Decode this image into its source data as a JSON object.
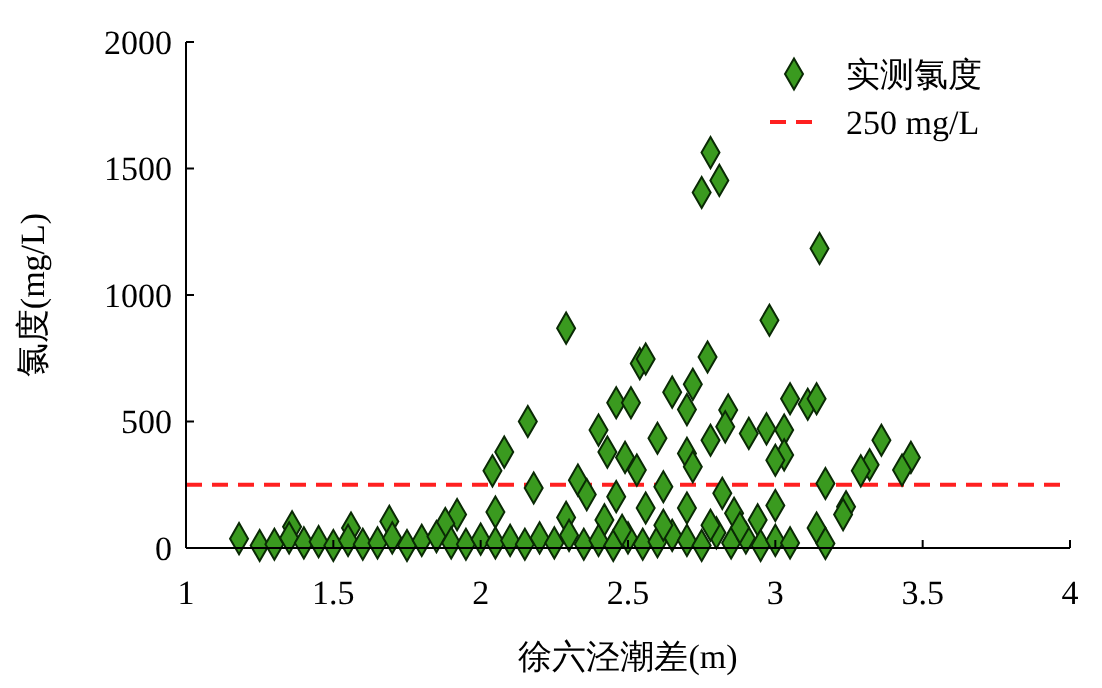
{
  "chart_data": {
    "type": "scatter",
    "xlabel": "徐六泾潮差(m)",
    "ylabel": "氯度(mg/L)",
    "xlim": [
      1,
      4
    ],
    "xticks": [
      1,
      1.5,
      2,
      2.5,
      3,
      3.5,
      4
    ],
    "ylim": [
      0,
      2000
    ],
    "yticks": [
      0,
      500,
      1000,
      1500,
      2000
    ],
    "marker": "diamond",
    "legend": "top right",
    "ref_lines": [
      {
        "axis": "y",
        "value": 250,
        "label": "250 mg/L",
        "color": "#ff2020",
        "line_style": "dashed"
      }
    ],
    "series": [
      {
        "name": "实测氯度",
        "color": "#3a9a1f",
        "x": [
          1.18,
          2.78,
          2.81,
          2.75,
          3.15,
          2.29,
          2.98,
          2.77,
          2.54,
          2.56,
          2.72,
          2.65,
          2.46,
          2.51,
          3.05,
          3.11,
          3.14,
          2.7,
          2.84,
          2.83,
          2.16,
          2.4,
          2.6,
          2.91,
          2.97,
          3.03,
          3.36,
          2.08,
          2.04,
          2.43,
          2.49,
          2.53,
          2.7,
          2.78,
          3.03,
          3.0,
          3.32,
          3.29,
          3.46,
          3.43,
          2.18,
          2.33,
          2.36,
          2.46,
          2.62,
          2.72,
          2.82,
          3.17,
          2.05,
          3.24,
          3.23,
          3.0,
          1.92,
          2.29,
          2.56,
          2.7,
          2.86,
          2.94,
          3.14,
          3.17,
          2.42,
          1.69,
          1.36,
          1.56,
          1.88,
          1.25,
          1.3,
          1.35,
          1.4,
          1.45,
          1.5,
          1.55,
          1.6,
          1.65,
          1.7,
          1.75,
          1.8,
          1.85,
          1.9,
          1.95,
          2.0,
          2.05,
          2.1,
          2.15,
          2.2,
          2.25,
          2.3,
          2.35,
          2.4,
          2.45,
          2.5,
          2.55,
          2.6,
          2.65,
          2.7,
          2.75,
          2.8,
          2.85,
          2.9,
          2.95,
          3.0,
          3.05,
          2.62,
          2.78,
          2.48,
          2.88
        ],
        "values": [
          37,
          1563,
          1453,
          1405,
          1184,
          869,
          900,
          755,
          729,
          747,
          647,
          616,
          574,
          574,
          590,
          568,
          590,
          547,
          545,
          479,
          500,
          466,
          434,
          453,
          471,
          466,
          426,
          379,
          305,
          379,
          358,
          308,
          374,
          426,
          368,
          347,
          329,
          305,
          358,
          308,
          237,
          268,
          211,
          203,
          242,
          321,
          216,
          255,
          142,
          163,
          132,
          168,
          132,
          121,
          158,
          158,
          137,
          111,
          79,
          18,
          111,
          105,
          84,
          79,
          97,
          10,
          15,
          40,
          20,
          25,
          10,
          30,
          15,
          20,
          40,
          10,
          30,
          45,
          20,
          15,
          35,
          20,
          30,
          15,
          40,
          20,
          50,
          15,
          30,
          10,
          40,
          15,
          25,
          50,
          30,
          10,
          60,
          20,
          40,
          10,
          30,
          20,
          90,
          90,
          70,
          80
        ]
      }
    ]
  }
}
